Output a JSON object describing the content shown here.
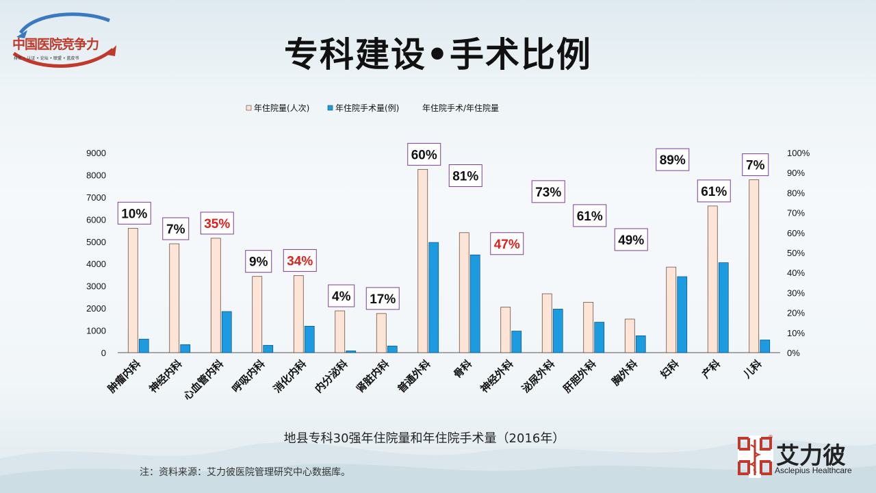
{
  "page": {
    "title": "专科建设•手术比例",
    "logo": {
      "name": "中国医院竞争力",
      "subtitle": "排名 • 认证 • 论坛 • 联盟 • 蓝皮书"
    },
    "caption": "地县专科30强年住院量和年住院手术量（2016年）",
    "note": "注：资料来源：艾力彼医院管理研究中心数据库。",
    "brand": {
      "cn": "艾力彼",
      "en": "Asclepius Healthcare",
      "reg_mark": "®"
    }
  },
  "colors": {
    "inpatient": "#fce4d6",
    "inpatient_border": "#5a3a2a",
    "surgery": "#1d9be0",
    "surgery_border": "#0b4d80",
    "ratio_box_border": "#7a3a9a",
    "highlight_text": "#e0201c",
    "normal_text": "#111111"
  },
  "chart_data": {
    "type": "bar",
    "legend_position": "top",
    "categories": [
      "肿瘤内科",
      "神经内科",
      "心血管内科",
      "呼吸内科",
      "消化内科",
      "内分泌科",
      "肾脏内科",
      "普通外科",
      "骨科",
      "神经外科",
      "泌尿外科",
      "肝胆外科",
      "胸外科",
      "妇科",
      "产科",
      "儿科"
    ],
    "series": [
      {
        "name": "年住院量(人次)",
        "values": [
          5600,
          4900,
          5150,
          3430,
          3470,
          1880,
          1760,
          8250,
          5400,
          2050,
          2650,
          2270,
          1510,
          3850,
          6600,
          7780
        ]
      },
      {
        "name": "年住院手术量(例)",
        "values": [
          610,
          360,
          1850,
          330,
          1190,
          80,
          300,
          4960,
          4400,
          970,
          1960,
          1370,
          760,
          3420,
          4050,
          570
        ]
      },
      {
        "name": "年住院手术/年住院量",
        "values": [
          0.1,
          0.07,
          0.35,
          0.09,
          0.34,
          0.04,
          0.17,
          0.6,
          0.81,
          0.47,
          0.73,
          0.61,
          0.49,
          0.89,
          0.61,
          0.07
        ]
      }
    ],
    "ratio_labels": [
      "10%",
      "7%",
      "35%",
      "9%",
      "34%",
      "4%",
      "17%",
      "60%",
      "81%",
      "47%",
      "73%",
      "61%",
      "49%",
      "89%",
      "61%",
      "7%"
    ],
    "highlighted": [
      false,
      false,
      true,
      false,
      true,
      false,
      false,
      false,
      false,
      true,
      false,
      false,
      false,
      false,
      false,
      false
    ],
    "ylim": [
      0,
      9000
    ],
    "yticks": [
      "0",
      "1000",
      "2000",
      "3000",
      "4000",
      "5000",
      "6000",
      "7000",
      "8000",
      "9000"
    ],
    "y2lim": [
      0,
      1
    ],
    "y2ticks": [
      "0%",
      "10%",
      "20%",
      "30%",
      "40%",
      "50%",
      "60%",
      "70%",
      "80%",
      "90%",
      "100%"
    ],
    "grid": false
  }
}
